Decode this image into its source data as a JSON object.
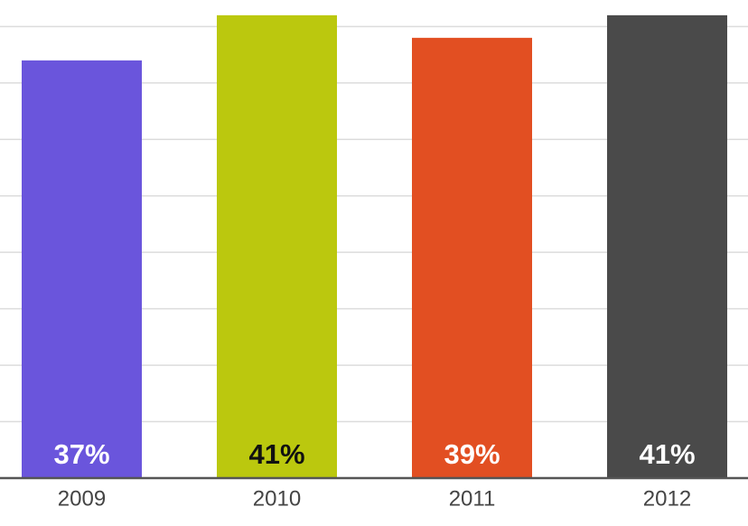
{
  "chart_data": {
    "type": "bar",
    "categories": [
      "2009",
      "2010",
      "2011",
      "2012"
    ],
    "values": [
      37,
      41,
      39,
      41
    ],
    "value_labels": [
      "37%",
      "41%",
      "39%",
      "41%"
    ],
    "colors": [
      "#6a55dc",
      "#bbc80e",
      "#e24f22",
      "#4a4a4a"
    ],
    "ylim": [
      0,
      42.35
    ],
    "yticks": [
      5,
      10,
      15,
      20,
      25,
      30,
      35,
      40
    ],
    "grid": true
  }
}
